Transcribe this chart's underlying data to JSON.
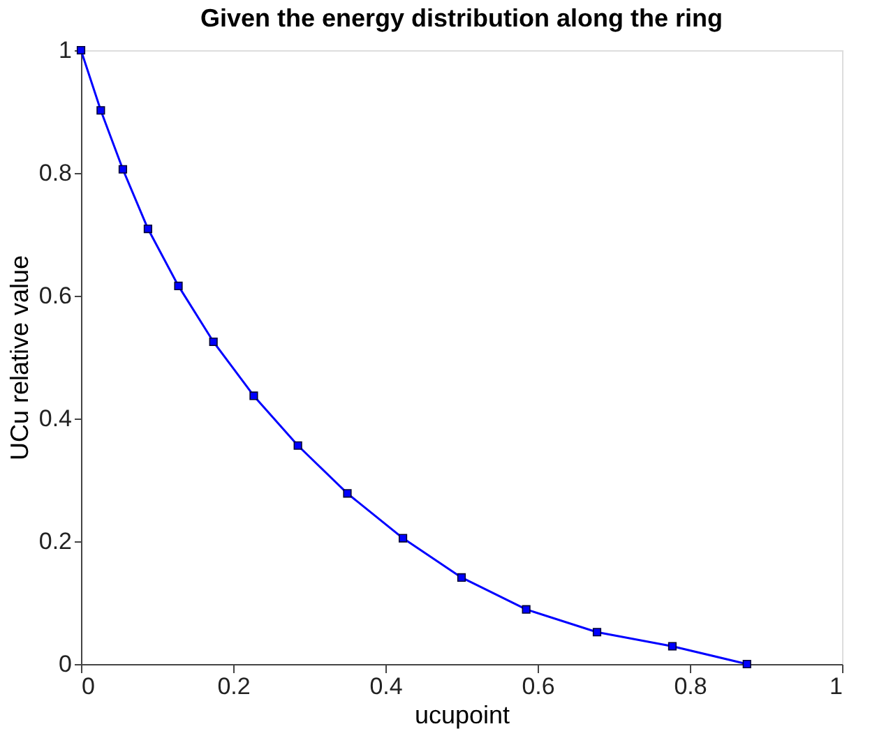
{
  "chart_data": {
    "type": "line",
    "title": "Given the energy distribution along the ring",
    "xlabel": "ucupoint",
    "ylabel": "UCu relative value",
    "x": [
      0,
      0.026,
      0.055,
      0.088,
      0.128,
      0.174,
      0.227,
      0.285,
      0.35,
      0.423,
      0.5,
      0.585,
      0.678,
      0.777,
      0.875
    ],
    "series": [
      {
        "color": "#0000ff",
        "values": [
          1,
          0.902,
          0.806,
          0.709,
          0.616,
          0.525,
          0.437,
          0.356,
          0.278,
          0.205,
          0.141,
          0.089,
          0.052,
          0.029,
          0.0
        ]
      }
    ],
    "xlim": [
      0,
      1
    ],
    "ylim": [
      0,
      1
    ],
    "xticks": [
      0,
      0.2,
      0.4,
      0.6,
      0.8,
      1
    ],
    "yticks": [
      0,
      0.2,
      0.4,
      0.6,
      0.8,
      1
    ],
    "marker": "square",
    "line_style": "solid",
    "grid": false,
    "legend": false
  }
}
